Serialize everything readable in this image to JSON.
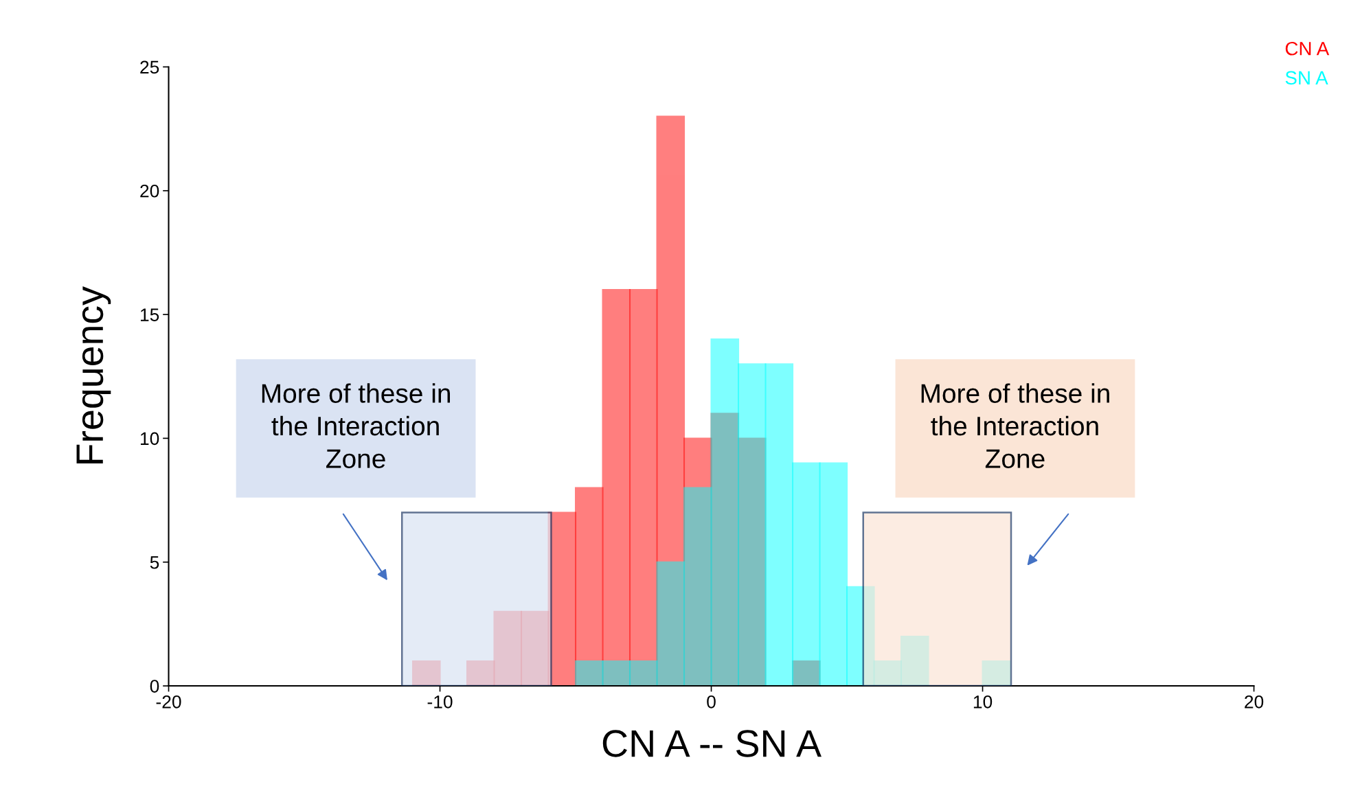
{
  "chart_data": {
    "type": "histogram",
    "xlabel": "CN A -- SN A",
    "ylabel": "Frequency",
    "bins": [
      -11,
      -10,
      -9,
      -8,
      -7,
      -6,
      -5,
      -4,
      -3,
      -2,
      -1,
      0,
      1,
      2,
      3,
      4,
      5,
      6,
      7,
      8,
      9,
      10,
      11
    ],
    "series": [
      {
        "name": "CN A",
        "color": "#ff0000",
        "values": [
          1,
          0,
          1,
          3,
          3,
          7,
          8,
          16,
          16,
          23,
          10,
          11,
          10,
          0,
          1,
          0,
          0,
          0,
          0,
          0,
          0,
          0
        ]
      },
      {
        "name": "SN A",
        "color": "#00ffff",
        "values": [
          0,
          0,
          0,
          0,
          0,
          0,
          1,
          1,
          1,
          5,
          8,
          14,
          13,
          13,
          9,
          9,
          4,
          1,
          2,
          0,
          0,
          1
        ]
      }
    ],
    "xlim": [
      -20,
      20
    ],
    "xticks": [
      -20,
      -10,
      0,
      10,
      20
    ],
    "ylim": [
      0,
      25
    ],
    "yticks": [
      0,
      5,
      10,
      15,
      20,
      25
    ],
    "grid": false,
    "legend": "top right",
    "bands": [
      {
        "axis": "x",
        "from": -11.4,
        "to": -5.9,
        "color": "#dae3f3",
        "label": "More of these in\nthe Interaction\nZone"
      },
      {
        "axis": "x",
        "from": 5.6,
        "to": 11.05,
        "color": "#fbe5d6",
        "label": "More of these in\nthe Interaction\nZone"
      }
    ]
  }
}
